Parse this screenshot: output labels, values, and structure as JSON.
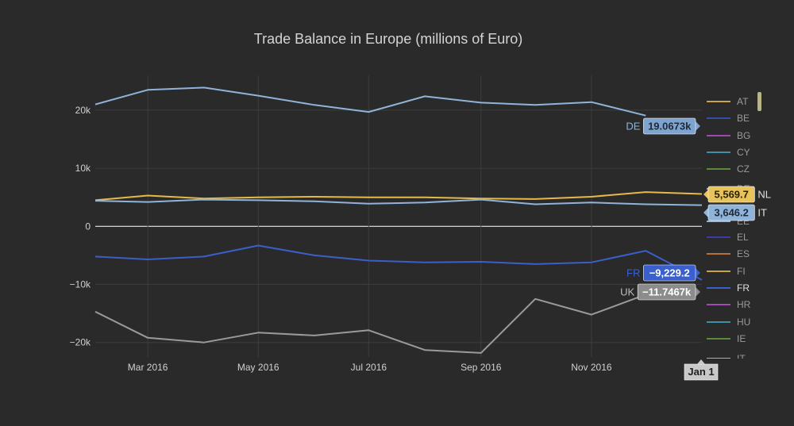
{
  "chart_data": {
    "type": "line",
    "title": "Trade Balance in Europe (millions of Euro)",
    "x": [
      "2016-02",
      "2016-03",
      "2016-04",
      "2016-05",
      "2016-06",
      "2016-07",
      "2016-08",
      "2016-09",
      "2016-10",
      "2016-11",
      "2016-12",
      "2017-01"
    ],
    "xticks": [
      {
        "date": "2016-03",
        "label": "Mar 2016"
      },
      {
        "date": "2016-05",
        "label": "May 2016"
      },
      {
        "date": "2016-07",
        "label": "Jul 2016"
      },
      {
        "date": "2016-09",
        "label": "Sep 2016"
      },
      {
        "date": "2016-11",
        "label": "Nov 2016"
      }
    ],
    "yticks": [
      {
        "value": 20000,
        "label": "20k"
      },
      {
        "value": 10000,
        "label": "10k"
      },
      {
        "value": 0,
        "label": "0"
      },
      {
        "value": -10000,
        "label": "−10k"
      },
      {
        "value": -20000,
        "label": "−20k"
      }
    ],
    "ylim": [
      -22500,
      26000
    ],
    "grid": true,
    "legend_position": "right",
    "series": [
      {
        "name": "DE",
        "color": "#8fb3d9",
        "values": [
          21000,
          23500,
          23900,
          22500,
          20900,
          19700,
          22400,
          21300,
          20900,
          21400,
          19067,
          null
        ]
      },
      {
        "name": "NL",
        "color": "#e5b94a",
        "values": [
          4500,
          5300,
          4800,
          5000,
          5100,
          5000,
          5000,
          4800,
          4700,
          5100,
          5900,
          5569.7
        ]
      },
      {
        "name": "IT",
        "color": "#8fb3d9",
        "values": [
          4400,
          4200,
          4600,
          4500,
          4300,
          3900,
          4100,
          4600,
          3800,
          4100,
          3800,
          3646.2
        ]
      },
      {
        "name": "FR",
        "color": "#3b5fc9",
        "values": [
          -5200,
          -5700,
          -5200,
          -3300,
          -5000,
          -5900,
          -6200,
          -6100,
          -6500,
          -6200,
          -4200,
          -9229.2
        ]
      },
      {
        "name": "UK",
        "color": "#9a9a9a",
        "values": [
          -14700,
          -19200,
          -20000,
          -18300,
          -18800,
          -17900,
          -21300,
          -21800,
          -12500,
          -15200,
          -11746.7,
          null
        ]
      }
    ],
    "hover": {
      "x_label": "Jan 1",
      "labels": [
        {
          "series": "DE",
          "text": "19.0673k",
          "color": "#7fa3cf",
          "text_color": "#1e2a38"
        },
        {
          "series": "NL",
          "text": "5,569.7",
          "color": "#e8c25a",
          "text_color": "#2a2200"
        },
        {
          "series": "IT",
          "text": "3,646.2",
          "color": "#8fb3d9",
          "text_color": "#1e2a38"
        },
        {
          "series": "FR",
          "text": "−9,229.2",
          "color": "#3a5fcf",
          "text_color": "#ffffff"
        },
        {
          "series": "UK",
          "text": "−11.7467k",
          "color": "#8c8c8c",
          "text_color": "#ffffff"
        }
      ]
    },
    "legend": [
      {
        "name": "AT",
        "color": "#c9a24a"
      },
      {
        "name": "BE",
        "color": "#2f4fa8"
      },
      {
        "name": "BG",
        "color": "#a04ab0"
      },
      {
        "name": "CY",
        "color": "#3f8fa8"
      },
      {
        "name": "CZ",
        "color": "#5a8a3a"
      },
      {
        "name": "EL",
        "color": "#3a3aa8"
      },
      {
        "name": "ES",
        "color": "#b8703a"
      },
      {
        "name": "FI",
        "color": "#c9a24a"
      },
      {
        "name": "FR",
        "color": "#3b5fc9"
      },
      {
        "name": "HR",
        "color": "#a04ab0"
      },
      {
        "name": "HU",
        "color": "#3f8fa8"
      },
      {
        "name": "IE",
        "color": "#5a8a3a"
      }
    ],
    "legend_partial": [
      {
        "name": "DE",
        "color": "#8fb3d9",
        "clip": "top"
      },
      {
        "name": "EE",
        "color": "#8fb3d9",
        "clip": "bottom"
      },
      {
        "name": "IT",
        "color": "#8fb3d9",
        "clip": "top"
      }
    ]
  }
}
